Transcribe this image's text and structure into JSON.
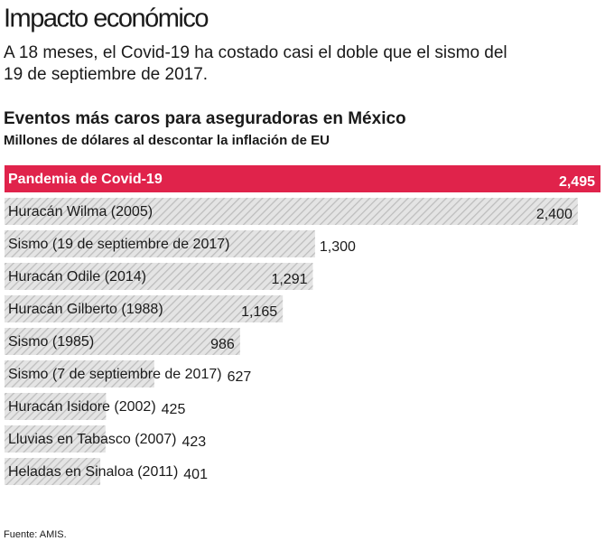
{
  "header": {
    "title": "Impacto económico",
    "subtitle_lines": [
      "A 18 meses, el Covid-19 ha costado casi el doble que el sismo del",
      "19 de septiembre de 2017."
    ]
  },
  "chart_data": {
    "type": "bar",
    "orientation": "horizontal",
    "title": "Eventos más caros para aseguradoras en México",
    "subtitle": "Millones de dólares al descontar la inflación de EU",
    "categories": [
      "Pandemia de Covid-19",
      "Huracán Wilma (2005)",
      "Sismo (19 de septiembre de 2017)",
      "Huracán Odile (2014)",
      "Huracán Gilberto (1988)",
      "Sismo (1985)",
      "Sismo (7 de septiembre de 2017)",
      "Huracán Isidore (2002)",
      "Lluvias en Tabasco (2007)",
      "Heladas en Sinaloa (2011)"
    ],
    "values": [
      2495,
      2400,
      1300,
      1291,
      1165,
      986,
      627,
      425,
      423,
      401
    ],
    "value_labels": [
      "2,495",
      "2,400",
      "1,300",
      "1,291",
      "1,165",
      "986",
      "627",
      "425",
      "423",
      "401"
    ],
    "color": "#d3d3d3",
    "highlight_color": "#e0234b",
    "highlight_index": 0
  },
  "source": "Fuente: AMIS."
}
